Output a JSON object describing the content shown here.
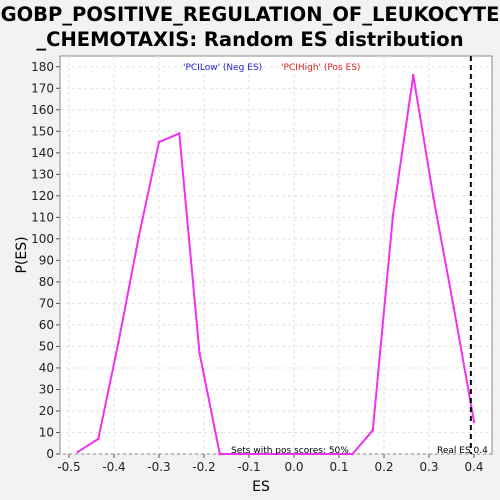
{
  "chart_data": {
    "type": "line",
    "title_lines": [
      "GOBP_POSITIVE_REGULATION_OF_LEUKOCYTE",
      "_CHEMOTAXIS: Random ES distribution"
    ],
    "xlabel": "ES",
    "ylabel": "P(ES)",
    "xlim": [
      -0.52,
      0.44
    ],
    "ylim": [
      0,
      185
    ],
    "xticks": [
      "-0.5",
      "-0.4",
      "-0.3",
      "-0.2",
      "-0.1",
      "0.0",
      "0.1",
      "0.2",
      "0.3",
      "0.4"
    ],
    "xtick_values": [
      -0.5,
      -0.4,
      -0.3,
      -0.2,
      -0.1,
      0.0,
      0.1,
      0.2,
      0.3,
      0.4
    ],
    "yticks": [
      "0",
      "10",
      "20",
      "30",
      "40",
      "50",
      "60",
      "70",
      "80",
      "90",
      "100",
      "110",
      "120",
      "130",
      "140",
      "150",
      "160",
      "170",
      "180"
    ],
    "ytick_values": [
      0,
      10,
      20,
      30,
      40,
      50,
      60,
      70,
      80,
      90,
      100,
      110,
      120,
      130,
      140,
      150,
      160,
      170,
      180
    ],
    "grid": true,
    "series": [
      {
        "color": "#ee33ee",
        "x": [
          -0.48,
          -0.435,
          -0.39,
          -0.345,
          -0.3,
          -0.255,
          -0.21,
          -0.165,
          -0.12,
          0.13,
          0.175,
          0.22,
          0.265,
          0.31,
          0.355,
          0.4
        ],
        "y": [
          1,
          7,
          52,
          101,
          145,
          149,
          47,
          0,
          0,
          0,
          11,
          111,
          176,
          119,
          68,
          15
        ]
      }
    ],
    "real_es": 0.393,
    "legend": [
      {
        "text": "'PCILow' (Neg ES)",
        "color": "#2222cc"
      },
      {
        "text": "'PCIHigh' (Pos ES)",
        "color": "#dd2222"
      }
    ],
    "annotation_pos_scores": "Sets with pos scores: 50%",
    "annotation_real_es": "Real ES 0.4"
  }
}
